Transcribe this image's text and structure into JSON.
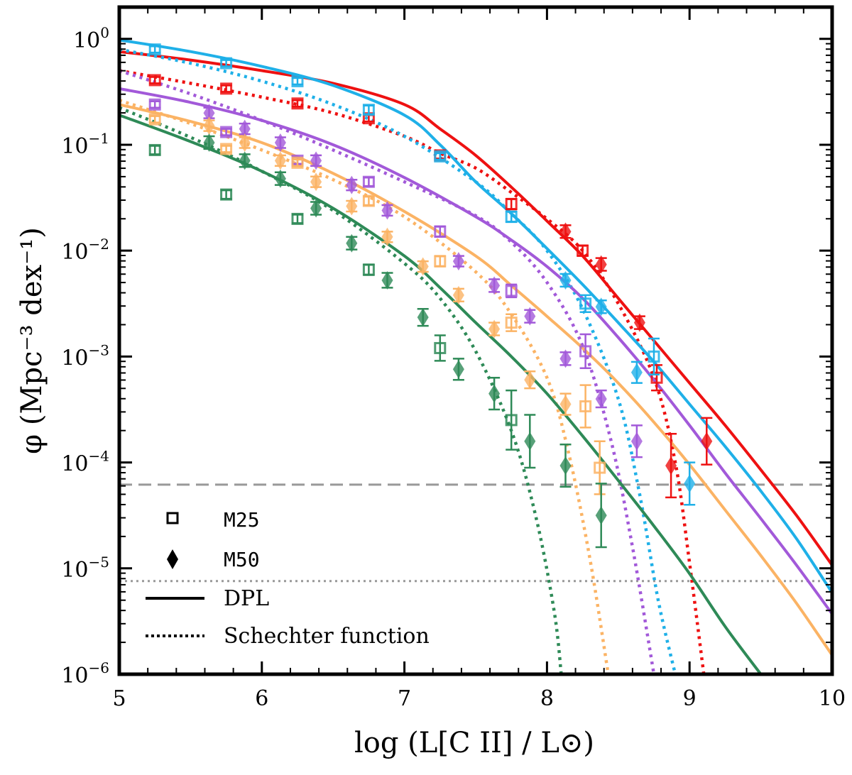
{
  "chart_data": {
    "type": "scatter",
    "xlabel": "log (L[C II] / L⊙)",
    "ylabel": "φ (Mpc⁻³ dex⁻¹)",
    "xlim": [
      5,
      10
    ],
    "ylim_log10": [
      -6,
      0.3
    ],
    "x_ticks": [
      "5",
      "6",
      "7",
      "8",
      "9",
      "10"
    ],
    "x_tick_values": [
      5,
      6,
      7,
      8,
      9,
      10
    ],
    "y_tick_values": [
      0,
      -1,
      -2,
      -3,
      -4,
      -5,
      -6
    ],
    "y_ticks": [
      {
        "base": "10",
        "exp": "0"
      },
      {
        "base": "10",
        "exp": "−1"
      },
      {
        "base": "10",
        "exp": "−2"
      },
      {
        "base": "10",
        "exp": "−3"
      },
      {
        "base": "10",
        "exp": "−4"
      },
      {
        "base": "10",
        "exp": "−5"
      },
      {
        "base": "10",
        "exp": "−6"
      }
    ],
    "reference_lines": [
      {
        "style": "dashed",
        "y_log10": -4.21,
        "color": "#999999"
      },
      {
        "style": "dotted",
        "y_log10": -5.12,
        "color": "#999999"
      }
    ],
    "legend": {
      "placement": "bottom-left",
      "entries": [
        {
          "marker": "square",
          "label": "M25"
        },
        {
          "marker": "diamond",
          "label": "M50"
        },
        {
          "line": "solid",
          "label": "DPL"
        },
        {
          "line": "dotted",
          "label": "Schechter function"
        }
      ]
    },
    "series": [
      {
        "name": "red",
        "color": "#ee1111",
        "dpl": [
          [
            5.0,
            -0.12
          ],
          [
            5.5,
            -0.2
          ],
          [
            6.0,
            -0.3
          ],
          [
            6.5,
            -0.42
          ],
          [
            7.0,
            -0.62
          ],
          [
            7.25,
            -0.85
          ],
          [
            7.5,
            -1.1
          ],
          [
            7.75,
            -1.4
          ],
          [
            8.0,
            -1.72
          ],
          [
            8.25,
            -2.05
          ],
          [
            8.5,
            -2.45
          ],
          [
            8.75,
            -2.85
          ],
          [
            9.0,
            -3.25
          ],
          [
            9.25,
            -3.65
          ],
          [
            9.5,
            -4.07
          ],
          [
            9.75,
            -4.5
          ],
          [
            10.0,
            -4.97
          ]
        ],
        "schechter": [
          [
            5.0,
            -0.3
          ],
          [
            5.5,
            -0.42
          ],
          [
            6.0,
            -0.55
          ],
          [
            6.5,
            -0.7
          ],
          [
            7.0,
            -0.92
          ],
          [
            7.25,
            -1.08
          ],
          [
            7.5,
            -1.22
          ],
          [
            7.75,
            -1.45
          ],
          [
            8.0,
            -1.7
          ],
          [
            8.25,
            -2.0
          ],
          [
            8.5,
            -2.5
          ],
          [
            8.75,
            -3.2
          ],
          [
            8.9,
            -4.0
          ],
          [
            9.0,
            -4.95
          ],
          [
            9.1,
            -6.0
          ]
        ],
        "m25": [
          {
            "x": 5.25,
            "y": -0.39,
            "e": 0.03
          },
          {
            "x": 5.75,
            "y": -0.47,
            "e": 0.03
          },
          {
            "x": 6.25,
            "y": -0.61,
            "e": 0.03
          },
          {
            "x": 6.75,
            "y": -0.75,
            "e": 0.03
          },
          {
            "x": 7.25,
            "y": -1.1,
            "e": 0.03
          },
          {
            "x": 7.75,
            "y": -1.56,
            "e": 0.05
          },
          {
            "x": 8.25,
            "y": -2.0,
            "e": 0.05
          },
          {
            "x": 8.77,
            "y": -3.2,
            "e": 0.12
          }
        ],
        "m50": [
          {
            "x": 8.13,
            "y": -1.82,
            "e": 0.06
          },
          {
            "x": 8.38,
            "y": -2.13,
            "e": 0.06
          },
          {
            "x": 8.65,
            "y": -2.68,
            "e": 0.06
          },
          {
            "x": 8.87,
            "y": -4.03,
            "e": 0.3
          },
          {
            "x": 9.12,
            "y": -3.8,
            "e": 0.22
          }
        ]
      },
      {
        "name": "blue",
        "color": "#1fb0e8",
        "dpl": [
          [
            5.0,
            -0.01
          ],
          [
            5.5,
            -0.12
          ],
          [
            6.0,
            -0.26
          ],
          [
            6.5,
            -0.44
          ],
          [
            7.0,
            -0.72
          ],
          [
            7.25,
            -1.0
          ],
          [
            7.5,
            -1.35
          ],
          [
            7.75,
            -1.65
          ],
          [
            8.0,
            -1.98
          ],
          [
            8.25,
            -2.32
          ],
          [
            8.5,
            -2.68
          ],
          [
            8.75,
            -3.05
          ],
          [
            9.0,
            -3.45
          ],
          [
            9.25,
            -3.85
          ],
          [
            9.5,
            -4.27
          ],
          [
            9.75,
            -4.72
          ],
          [
            10.0,
            -5.23
          ]
        ],
        "schechter": [
          [
            5.0,
            -0.1
          ],
          [
            5.5,
            -0.23
          ],
          [
            6.0,
            -0.4
          ],
          [
            6.5,
            -0.62
          ],
          [
            7.0,
            -0.92
          ],
          [
            7.5,
            -1.35
          ],
          [
            7.75,
            -1.65
          ],
          [
            8.0,
            -2.0
          ],
          [
            8.25,
            -2.55
          ],
          [
            8.5,
            -3.4
          ],
          [
            8.65,
            -4.3
          ],
          [
            8.78,
            -5.3
          ],
          [
            8.9,
            -6.0
          ]
        ],
        "m25": [
          {
            "x": 5.25,
            "y": -0.1,
            "e": 0.03
          },
          {
            "x": 5.75,
            "y": -0.23,
            "e": 0.03
          },
          {
            "x": 6.25,
            "y": -0.4,
            "e": 0.03
          },
          {
            "x": 6.75,
            "y": -0.67,
            "e": 0.04
          },
          {
            "x": 7.25,
            "y": -1.11,
            "e": 0.03
          },
          {
            "x": 7.75,
            "y": -1.68,
            "e": 0.05
          },
          {
            "x": 8.27,
            "y": -2.5,
            "e": 0.08
          },
          {
            "x": 8.75,
            "y": -3.0,
            "e": 0.17
          }
        ],
        "m50": [
          {
            "x": 8.13,
            "y": -2.28,
            "e": 0.06
          },
          {
            "x": 8.38,
            "y": -2.53,
            "e": 0.06
          },
          {
            "x": 8.63,
            "y": -3.15,
            "e": 0.1
          },
          {
            "x": 9.0,
            "y": -4.2,
            "e": 0.2
          }
        ]
      },
      {
        "name": "purple",
        "color": "#a259d9",
        "dpl": [
          [
            5.0,
            -0.47
          ],
          [
            5.5,
            -0.6
          ],
          [
            6.0,
            -0.77
          ],
          [
            6.5,
            -1.0
          ],
          [
            7.0,
            -1.31
          ],
          [
            7.5,
            -1.68
          ],
          [
            7.75,
            -1.9
          ],
          [
            8.0,
            -2.15
          ],
          [
            8.25,
            -2.45
          ],
          [
            8.5,
            -2.82
          ],
          [
            8.75,
            -3.22
          ],
          [
            9.0,
            -3.65
          ],
          [
            9.25,
            -4.1
          ],
          [
            9.5,
            -4.53
          ],
          [
            9.75,
            -4.97
          ],
          [
            10.0,
            -5.43
          ]
        ],
        "schechter": [
          [
            5.0,
            -0.3
          ],
          [
            5.5,
            -0.52
          ],
          [
            6.0,
            -0.77
          ],
          [
            6.5,
            -1.05
          ],
          [
            7.0,
            -1.35
          ],
          [
            7.5,
            -1.67
          ],
          [
            7.75,
            -1.92
          ],
          [
            8.0,
            -2.3
          ],
          [
            8.25,
            -2.9
          ],
          [
            8.45,
            -3.8
          ],
          [
            8.6,
            -4.8
          ],
          [
            8.75,
            -6.0
          ]
        ],
        "m25": [
          {
            "x": 5.25,
            "y": -0.62,
            "e": 0.03
          },
          {
            "x": 5.75,
            "y": -0.88,
            "e": 0.03
          },
          {
            "x": 6.25,
            "y": -1.15,
            "e": 0.03
          },
          {
            "x": 6.75,
            "y": -1.35,
            "e": 0.04
          },
          {
            "x": 7.25,
            "y": -1.82,
            "e": 0.05
          },
          {
            "x": 7.75,
            "y": -2.38,
            "e": 0.06
          },
          {
            "x": 8.27,
            "y": -2.95,
            "e": 0.16
          }
        ],
        "m50": [
          {
            "x": 5.63,
            "y": -0.7,
            "e": 0.05
          },
          {
            "x": 5.88,
            "y": -0.85,
            "e": 0.05
          },
          {
            "x": 6.13,
            "y": -0.98,
            "e": 0.05
          },
          {
            "x": 6.38,
            "y": -1.15,
            "e": 0.05
          },
          {
            "x": 6.63,
            "y": -1.38,
            "e": 0.05
          },
          {
            "x": 6.88,
            "y": -1.62,
            "e": 0.05
          },
          {
            "x": 7.38,
            "y": -2.1,
            "e": 0.05
          },
          {
            "x": 7.63,
            "y": -2.33,
            "e": 0.06
          },
          {
            "x": 7.88,
            "y": -2.62,
            "e": 0.06
          },
          {
            "x": 8.13,
            "y": -3.02,
            "e": 0.06
          },
          {
            "x": 8.38,
            "y": -3.4,
            "e": 0.08
          },
          {
            "x": 8.63,
            "y": -3.8,
            "e": 0.15
          }
        ]
      },
      {
        "name": "orange",
        "color": "#fbb364",
        "dpl": [
          [
            5.0,
            -0.62
          ],
          [
            5.5,
            -0.78
          ],
          [
            6.0,
            -0.98
          ],
          [
            6.5,
            -1.27
          ],
          [
            7.0,
            -1.63
          ],
          [
            7.5,
            -2.05
          ],
          [
            7.75,
            -2.33
          ],
          [
            8.0,
            -2.62
          ],
          [
            8.25,
            -2.92
          ],
          [
            8.5,
            -3.25
          ],
          [
            8.75,
            -3.62
          ],
          [
            9.0,
            -4.02
          ],
          [
            9.25,
            -4.45
          ],
          [
            9.5,
            -4.88
          ],
          [
            9.75,
            -5.33
          ],
          [
            10.0,
            -5.82
          ]
        ],
        "schechter": [
          [
            5.0,
            -0.58
          ],
          [
            5.5,
            -0.8
          ],
          [
            6.0,
            -1.05
          ],
          [
            6.5,
            -1.33
          ],
          [
            7.0,
            -1.68
          ],
          [
            7.5,
            -2.2
          ],
          [
            7.75,
            -2.6
          ],
          [
            8.0,
            -3.2
          ],
          [
            8.15,
            -3.9
          ],
          [
            8.3,
            -4.9
          ],
          [
            8.43,
            -6.0
          ]
        ],
        "m25": [
          {
            "x": 5.25,
            "y": -0.76,
            "e": 0.03
          },
          {
            "x": 5.75,
            "y": -1.04,
            "e": 0.03
          },
          {
            "x": 6.25,
            "y": -1.17,
            "e": 0.03
          },
          {
            "x": 6.75,
            "y": -1.53,
            "e": 0.04
          },
          {
            "x": 7.25,
            "y": -2.1,
            "e": 0.05
          },
          {
            "x": 7.75,
            "y": -2.68,
            "e": 0.08
          },
          {
            "x": 8.27,
            "y": -3.47,
            "e": 0.2
          },
          {
            "x": 8.37,
            "y": -4.05,
            "e": 0.25
          }
        ],
        "m50": [
          {
            "x": 5.63,
            "y": -0.82,
            "e": 0.05
          },
          {
            "x": 5.88,
            "y": -0.98,
            "e": 0.05
          },
          {
            "x": 6.13,
            "y": -1.15,
            "e": 0.05
          },
          {
            "x": 6.38,
            "y": -1.35,
            "e": 0.05
          },
          {
            "x": 6.63,
            "y": -1.58,
            "e": 0.05
          },
          {
            "x": 6.88,
            "y": -1.87,
            "e": 0.05
          },
          {
            "x": 7.13,
            "y": -2.15,
            "e": 0.05
          },
          {
            "x": 7.38,
            "y": -2.42,
            "e": 0.06
          },
          {
            "x": 7.63,
            "y": -2.74,
            "e": 0.06
          },
          {
            "x": 7.88,
            "y": -3.22,
            "e": 0.08
          },
          {
            "x": 8.13,
            "y": -3.45,
            "e": 0.1
          }
        ]
      },
      {
        "name": "green",
        "color": "#2e8a57",
        "dpl": [
          [
            5.0,
            -0.72
          ],
          [
            5.5,
            -0.97
          ],
          [
            6.0,
            -1.25
          ],
          [
            6.5,
            -1.6
          ],
          [
            7.0,
            -2.05
          ],
          [
            7.25,
            -2.35
          ],
          [
            7.5,
            -2.68
          ],
          [
            7.75,
            -3.0
          ],
          [
            8.0,
            -3.35
          ],
          [
            8.25,
            -3.75
          ],
          [
            8.5,
            -4.17
          ],
          [
            8.75,
            -4.6
          ],
          [
            9.0,
            -5.05
          ],
          [
            9.25,
            -5.55
          ],
          [
            9.5,
            -6.0
          ]
        ],
        "schechter": [
          [
            5.0,
            -0.65
          ],
          [
            5.5,
            -0.93
          ],
          [
            6.0,
            -1.25
          ],
          [
            6.5,
            -1.62
          ],
          [
            7.0,
            -2.12
          ],
          [
            7.25,
            -2.45
          ],
          [
            7.5,
            -2.95
          ],
          [
            7.75,
            -3.7
          ],
          [
            7.92,
            -4.5
          ],
          [
            8.05,
            -5.4
          ],
          [
            8.1,
            -6.0
          ]
        ],
        "m25": [
          {
            "x": 5.25,
            "y": -1.05,
            "e": 0.04
          },
          {
            "x": 5.75,
            "y": -1.47,
            "e": 0.04
          },
          {
            "x": 6.25,
            "y": -1.7,
            "e": 0.04
          },
          {
            "x": 6.75,
            "y": -2.18,
            "e": 0.05
          },
          {
            "x": 7.25,
            "y": -2.92,
            "e": 0.12
          },
          {
            "x": 7.75,
            "y": -3.6,
            "e": 0.28
          }
        ],
        "m50": [
          {
            "x": 5.63,
            "y": -0.98,
            "e": 0.06
          },
          {
            "x": 5.88,
            "y": -1.15,
            "e": 0.06
          },
          {
            "x": 6.13,
            "y": -1.32,
            "e": 0.06
          },
          {
            "x": 6.38,
            "y": -1.6,
            "e": 0.06
          },
          {
            "x": 6.63,
            "y": -1.93,
            "e": 0.06
          },
          {
            "x": 6.88,
            "y": -2.28,
            "e": 0.07
          },
          {
            "x": 7.13,
            "y": -2.63,
            "e": 0.08
          },
          {
            "x": 7.38,
            "y": -3.12,
            "e": 0.1
          },
          {
            "x": 7.63,
            "y": -3.35,
            "e": 0.15
          },
          {
            "x": 7.88,
            "y": -3.8,
            "e": 0.25
          },
          {
            "x": 8.13,
            "y": -4.03,
            "e": 0.2
          },
          {
            "x": 8.38,
            "y": -4.5,
            "e": 0.3
          }
        ]
      }
    ]
  }
}
